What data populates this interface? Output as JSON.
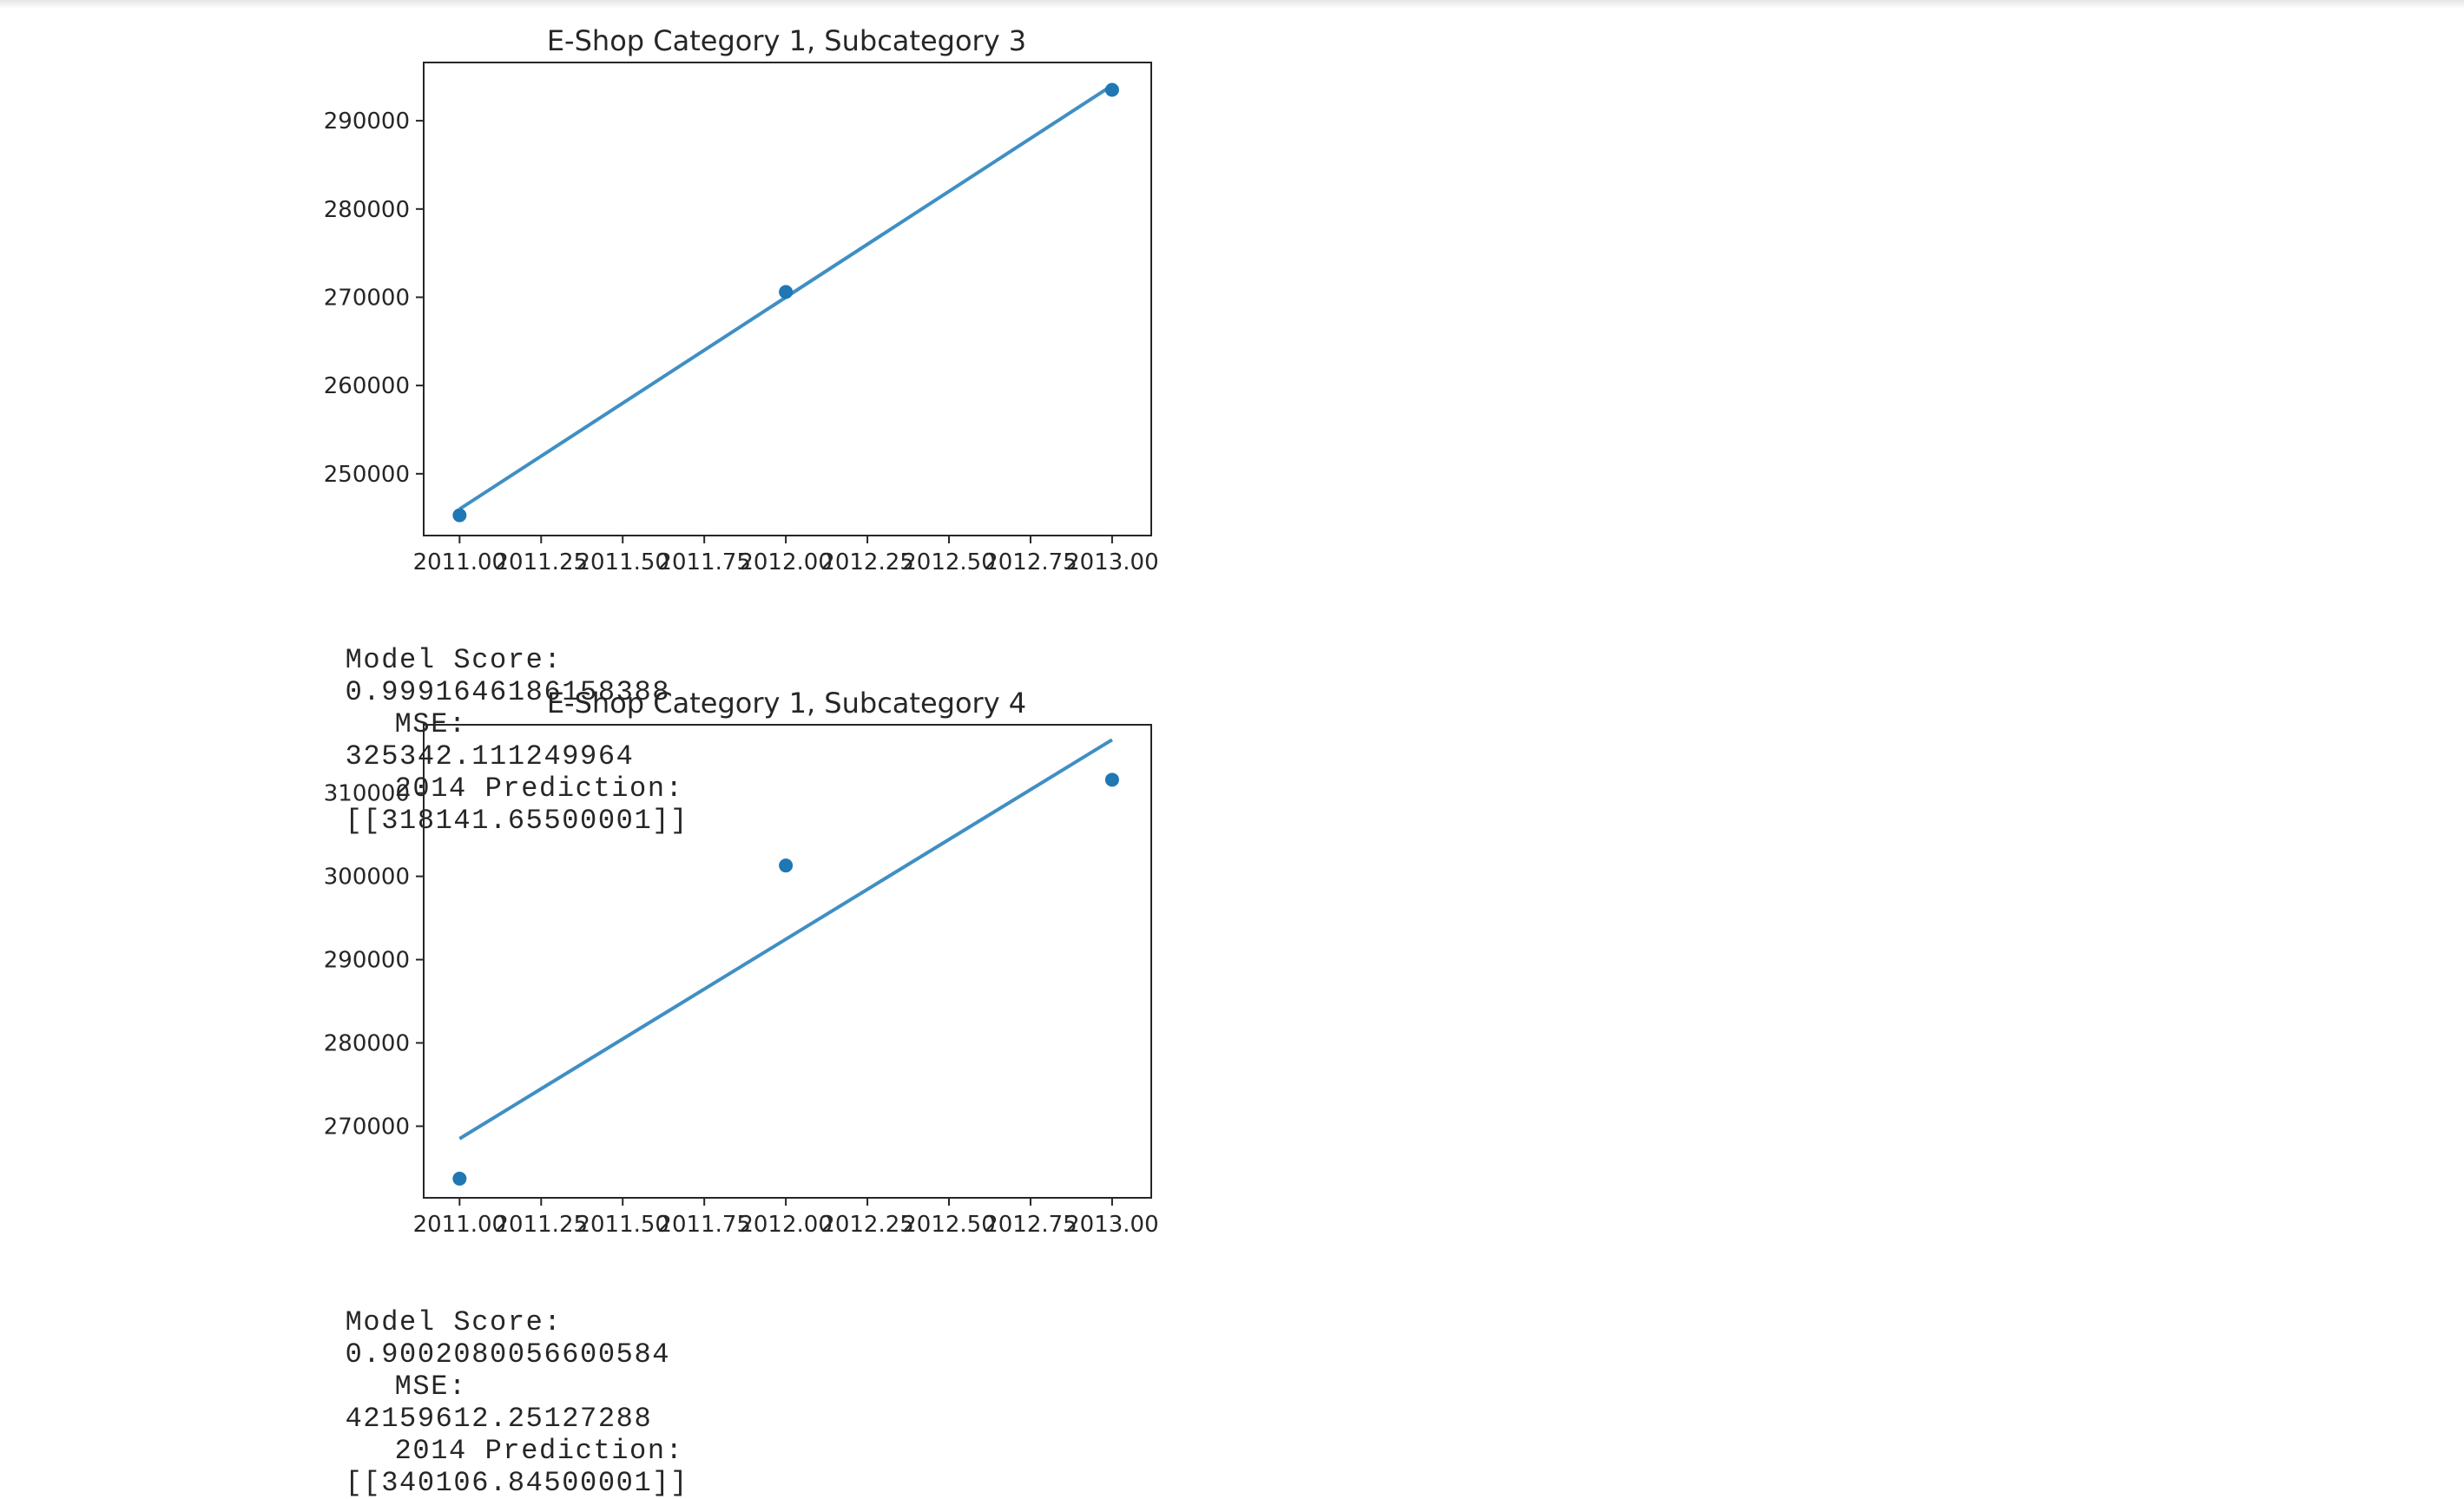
{
  "cells": [
    {
      "chart_data": {
        "type": "scatter",
        "title": "E-Shop Category 1, Subcategory 3",
        "xlabel": "",
        "ylabel": "",
        "x": [
          2011,
          2012,
          2013
        ],
        "y": [
          245300,
          270600,
          293500
        ],
        "fit_line": {
          "x": [
            2011,
            2013
          ],
          "y": [
            246000,
            294000
          ]
        },
        "xlim": [
          2010.89,
          2013.12
        ],
        "ylim": [
          243000,
          296600
        ],
        "xticks": [
          2011.0,
          2011.25,
          2011.5,
          2011.75,
          2012.0,
          2012.25,
          2012.5,
          2012.75,
          2013.0
        ],
        "xtick_labels": [
          "2011.00",
          "2011.25",
          "2011.50",
          "2011.75",
          "2012.00",
          "2012.25",
          "2012.50",
          "2012.75",
          "2013.00"
        ],
        "yticks": [
          250000,
          260000,
          270000,
          280000,
          290000
        ],
        "ytick_labels": [
          "250000",
          "260000",
          "270000",
          "280000",
          "290000"
        ],
        "grid": false,
        "colors": {
          "points": "#1f77b4",
          "line": "#3f8fc4"
        }
      },
      "output": {
        "score_label": "Model Score:",
        "score_value": "0.9991646186158388",
        "mse_label": "MSE:",
        "mse_value": "325342.111249964",
        "pred_label": "2014 Prediction:",
        "pred_value": "[[318141.65500001]]"
      }
    },
    {
      "chart_data": {
        "type": "scatter",
        "title": "E-Shop Category 1, Subcategory 4",
        "xlabel": "",
        "ylabel": "",
        "x": [
          2011,
          2012,
          2013
        ],
        "y": [
          263700,
          301300,
          311600
        ],
        "fit_line": {
          "x": [
            2011,
            2013
          ],
          "y": [
            268500,
            316400
          ]
        },
        "xlim": [
          2010.89,
          2013.12
        ],
        "ylim": [
          261400,
          318200
        ],
        "xticks": [
          2011.0,
          2011.25,
          2011.5,
          2011.75,
          2012.0,
          2012.25,
          2012.5,
          2012.75,
          2013.0
        ],
        "xtick_labels": [
          "2011.00",
          "2011.25",
          "2011.50",
          "2011.75",
          "2012.00",
          "2012.25",
          "2012.50",
          "2012.75",
          "2013.00"
        ],
        "yticks": [
          270000,
          280000,
          290000,
          300000,
          310000
        ],
        "ytick_labels": [
          "270000",
          "280000",
          "290000",
          "300000",
          "310000"
        ],
        "grid": false,
        "colors": {
          "points": "#1f77b4",
          "line": "#3f8fc4"
        }
      },
      "output": {
        "score_label": "Model Score:",
        "score_value": "0.9002080056600584",
        "mse_label": "MSE:",
        "mse_value": "42159612.25127288",
        "pred_label": "2014 Prediction:",
        "pred_value": "[[340106.84500001]]"
      }
    }
  ]
}
